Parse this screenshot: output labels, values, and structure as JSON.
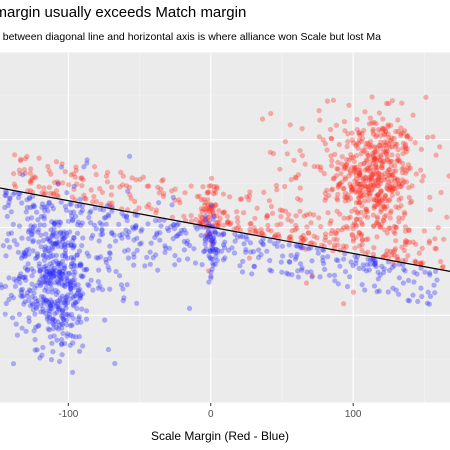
{
  "title": "e margin usually exceeds Match margin",
  "subtitle": "n between diagonal line and horizontal axis is where alliance won Scale but lost Ma",
  "chart_data": {
    "type": "scatter",
    "title": "e margin usually exceeds Match margin",
    "subtitle": "n between diagonal line and horizontal axis is where alliance won Scale but lost Ma",
    "xlabel": "Scale Margin (Red - Blue)",
    "ylabel": "",
    "xlim": [
      -148,
      168
    ],
    "ylim": [
      -200,
      200
    ],
    "x_ticks": [
      -100,
      0,
      100
    ],
    "x_tick_labels": [
      "-100",
      "0",
      "100"
    ],
    "grid": true,
    "legend": "none",
    "colors": {
      "panel": "#ebebeb",
      "grid_major": "#ffffff",
      "grid_minor": "#f5f5f5",
      "red_points": "#ff2a1f",
      "blue_points": "#2a2aff",
      "fit_line": "#000000"
    },
    "trend_line": {
      "x": [
        -148,
        168
      ],
      "y": [
        45,
        -50
      ]
    },
    "series": [
      {
        "color": "red",
        "clusters": [
          {
            "center": [
              115,
              60
            ],
            "spread": [
              14,
              35
            ],
            "count": 420
          },
          {
            "center": [
              100,
              50
            ],
            "spread": [
              35,
              45
            ],
            "count": 160
          },
          {
            "center": [
              0,
              20
            ],
            "spread": [
              3,
              18
            ],
            "count": 55
          }
        ],
        "band": {
          "x_range": [
            -140,
            165
          ],
          "y_offset_above_line": [
            2,
            45
          ],
          "count": 320
        }
      },
      {
        "color": "blue",
        "clusters": [
          {
            "center": [
              -110,
              -60
            ],
            "spread": [
              14,
              40
            ],
            "count": 420
          },
          {
            "center": [
              -95,
              -35
            ],
            "spread": [
              35,
              45
            ],
            "count": 160
          },
          {
            "center": [
              0,
              -20
            ],
            "spread": [
              3,
              18
            ],
            "count": 55
          }
        ],
        "band": {
          "x_range": [
            -145,
            160
          ],
          "y_offset_below_line": [
            2,
            45
          ],
          "count": 320
        }
      }
    ]
  }
}
